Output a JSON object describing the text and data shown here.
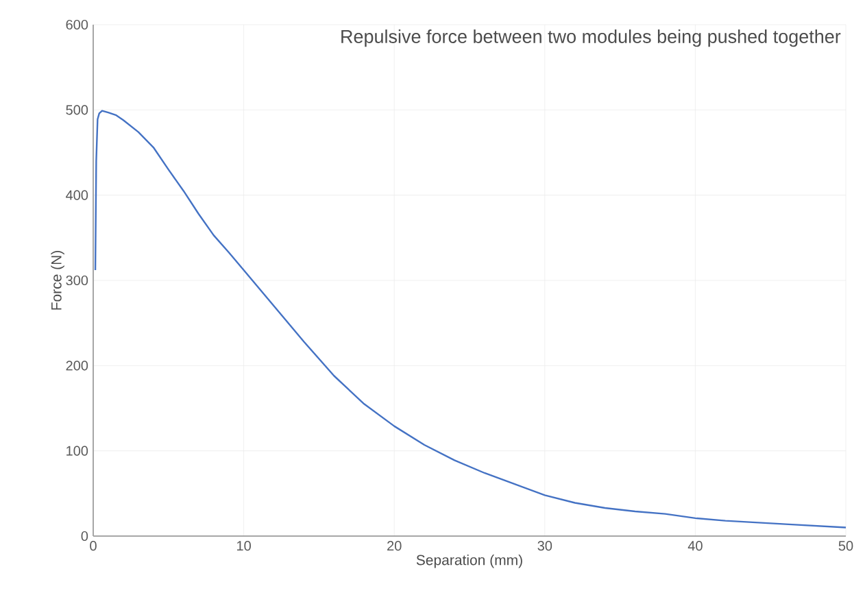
{
  "chart_data": {
    "type": "line",
    "title": "Repulsive force between two modules being pushed together",
    "xlabel": "Separation (mm)",
    "ylabel": "Force (N)",
    "xlim": [
      0,
      50
    ],
    "xticks": [
      0,
      10,
      20,
      30,
      40,
      50
    ],
    "ylim": [
      0,
      600
    ],
    "yticks": [
      0,
      100,
      200,
      300,
      400,
      500,
      600
    ],
    "grid": true,
    "marker": "none",
    "line_style": "solid",
    "series": [
      {
        "color": "#4472c4",
        "x": [
          0.14,
          0.2,
          0.29,
          0.4,
          0.59,
          1,
          1.5,
          2,
          3,
          4,
          5,
          6,
          7,
          8,
          9,
          10,
          12,
          14,
          16,
          18,
          20,
          22,
          24,
          26,
          28,
          30,
          32,
          34,
          36,
          38,
          40,
          42,
          44,
          46,
          48,
          50
        ],
        "values": [
          312,
          440,
          489,
          496,
          499,
          497,
          494,
          488,
          474,
          456,
          430,
          405,
          378,
          353,
          333,
          312,
          270,
          228,
          188,
          155,
          129,
          107,
          89,
          74,
          61,
          48,
          39,
          33,
          29,
          26,
          21,
          18,
          16,
          14,
          12,
          10
        ]
      }
    ]
  }
}
